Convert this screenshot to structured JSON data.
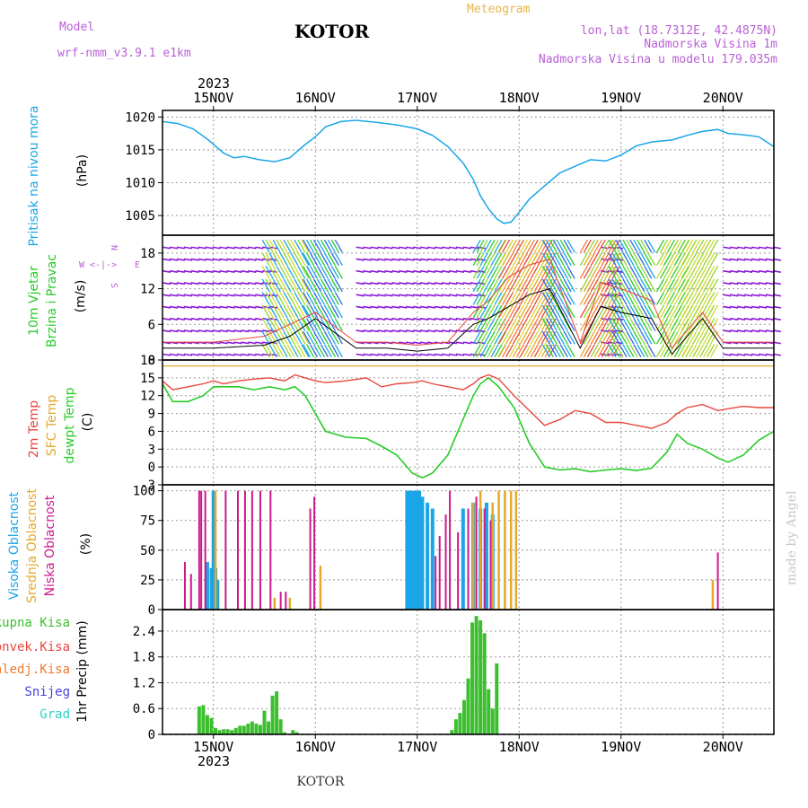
{
  "header": {
    "model_label": "Model",
    "model_name": "wrf-nmm_v3.9.1 e1km",
    "location": "KOTOR",
    "meteogram": "Meteogram",
    "lonlat": "lon,lat (18.7312E, 42.4875N)",
    "altitude": "Nadmorska Visina 1m",
    "model_altitude": "Nadmorska Visina u modelu 179.035m",
    "footer_location": "KOTOR",
    "watermark": "made by Angel",
    "year": "2023"
  },
  "colors": {
    "pressure": "#1aa6e6",
    "temp2m": "#e8473e",
    "sfc_temp": "#e6a82e",
    "dewpoint": "#27cc27",
    "high_cloud": "#1aa6e6",
    "mid_cloud": "#e6a82e",
    "low_cloud": "#cc1a8c",
    "total_precip": "#3cbf2e",
    "conv_precip": "#e8473e",
    "frozen_precip": "#f07a30",
    "snow": "#4444dd",
    "hail": "#2ed1c4",
    "wind_calm": "#8b1ad6",
    "wind_label_purple": "#b95fd6"
  },
  "x_axis": {
    "top_labels": [
      "15NOV",
      "16NOV",
      "17NOV",
      "18NOV",
      "19NOV",
      "20NOV"
    ],
    "bottom_labels": [
      "15NOV",
      "16NOV",
      "17NOV",
      "18NOV",
      "19NOV",
      "20NOV"
    ],
    "day_positions": [
      1,
      2,
      3,
      4,
      5,
      6
    ],
    "range": [
      0.5,
      6.5
    ]
  },
  "panels": {
    "pressure": {
      "label": "Pritisak na nivou mora",
      "unit": "(hPa)"
    },
    "wind": {
      "label1": "10m Vjetar",
      "label2": "Brzina i Pravac",
      "unit": "(m/s)",
      "compass_w": "W",
      "compass_e": "E",
      "compass_arrows": "<-|->",
      "compass_n": "N",
      "compass_s": "S"
    },
    "temp": {
      "label_2m": "2m Temp",
      "label_sfc": "SFC Temp",
      "label_dew": "dewpt Temp",
      "unit": "(C)"
    },
    "cloud": {
      "label_high": "Visoka Oblacnost",
      "label_mid": "Srednja Oblacnost",
      "label_low": "Niska Oblacnost",
      "unit": "(%)"
    },
    "precip": {
      "label": "1hr Precip (mm)",
      "legend": [
        "Ukupna Kisa",
        "Konvek.Kisa",
        "Zaledj.Kisa",
        "Snijeg",
        "Grad"
      ]
    }
  },
  "chart_data": [
    {
      "type": "line",
      "title": "Pritisak na nivou mora",
      "ylabel": "(hPa)",
      "ylim": [
        1002,
        1021
      ],
      "yticks": [
        1005,
        1010,
        1015,
        1020
      ],
      "x": [
        0.5,
        0.65,
        0.8,
        0.95,
        1.1,
        1.2,
        1.3,
        1.45,
        1.6,
        1.75,
        1.9,
        2.0,
        2.1,
        2.25,
        2.4,
        2.6,
        2.8,
        3.0,
        3.15,
        3.3,
        3.45,
        3.55,
        3.62,
        3.7,
        3.78,
        3.85,
        3.92,
        4.0,
        4.1,
        4.25,
        4.4,
        4.55,
        4.7,
        4.85,
        5.0,
        5.15,
        5.3,
        5.5,
        5.65,
        5.8,
        5.95,
        6.05,
        6.2,
        6.35,
        6.5
      ],
      "series": [
        {
          "name": "Pritisak na nivou mora",
          "values": [
            1019.3,
            1019.0,
            1018.2,
            1016.5,
            1014.5,
            1013.8,
            1014.0,
            1013.5,
            1013.2,
            1013.8,
            1015.8,
            1017.0,
            1018.5,
            1019.3,
            1019.5,
            1019.2,
            1018.8,
            1018.2,
            1017.2,
            1015.5,
            1013.0,
            1010.5,
            1008.0,
            1006.0,
            1004.5,
            1003.8,
            1004.0,
            1005.5,
            1007.5,
            1009.5,
            1011.5,
            1012.5,
            1013.5,
            1013.3,
            1014.2,
            1015.6,
            1016.2,
            1016.5,
            1017.2,
            1017.8,
            1018.1,
            1017.5,
            1017.3,
            1017.0,
            1015.5
          ]
        }
      ]
    },
    {
      "type": "line",
      "title": "10m Vjetar Brzina i Pravac",
      "ylabel": "(m/s)",
      "ylim": [
        0,
        21
      ],
      "yticks": [
        0,
        6,
        12,
        18
      ],
      "x": [
        0.5,
        1.0,
        1.5,
        1.75,
        2.0,
        2.4,
        2.7,
        3.0,
        3.3,
        3.55,
        3.7,
        3.9,
        4.1,
        4.3,
        4.6,
        4.8,
        5.0,
        5.3,
        5.5,
        5.8,
        6.0,
        6.3,
        6.5
      ],
      "series": [
        {
          "name": "speed",
          "values": [
            2,
            2,
            2.5,
            4,
            7,
            2,
            2,
            1.5,
            2,
            6,
            7,
            9,
            11,
            12,
            2,
            9,
            8,
            7,
            1,
            7,
            2,
            2,
            2
          ]
        },
        {
          "name": "gust",
          "values": [
            3,
            3,
            4,
            6,
            8,
            3,
            3,
            2.5,
            3,
            8,
            10,
            14,
            16,
            17,
            3,
            13,
            12,
            10,
            2,
            8,
            3,
            3,
            3
          ]
        }
      ]
    },
    {
      "type": "line",
      "title": "2m Temp / SFC Temp / dewpt Temp",
      "ylabel": "(C)",
      "ylim": [
        -3,
        18
      ],
      "yticks": [
        -3,
        0,
        3,
        6,
        9,
        12,
        15,
        18
      ],
      "x": [
        0.5,
        0.6,
        0.75,
        0.9,
        1.0,
        1.1,
        1.25,
        1.4,
        1.55,
        1.7,
        1.8,
        1.9,
        2.0,
        2.1,
        2.3,
        2.5,
        2.65,
        2.8,
        2.95,
        3.05,
        3.15,
        3.3,
        3.45,
        3.55,
        3.62,
        3.7,
        3.8,
        3.95,
        4.1,
        4.25,
        4.4,
        4.55,
        4.7,
        4.85,
        5.0,
        5.15,
        5.3,
        5.45,
        5.55,
        5.65,
        5.8,
        5.95,
        6.05,
        6.2,
        6.35,
        6.5
      ],
      "series": [
        {
          "name": "2m Temp",
          "values": [
            14.5,
            13.0,
            13.5,
            14.0,
            14.5,
            14.0,
            14.5,
            14.8,
            15.0,
            14.5,
            15.5,
            15.0,
            14.5,
            14.2,
            14.5,
            15.0,
            13.5,
            14.0,
            14.2,
            14.5,
            14.0,
            13.5,
            13.0,
            14.0,
            15.0,
            15.5,
            14.8,
            12.0,
            9.5,
            7.0,
            8.0,
            9.5,
            9.0,
            7.5,
            7.5,
            7.0,
            6.5,
            7.5,
            9.0,
            10.0,
            10.5,
            9.5,
            9.8,
            10.2,
            10.0,
            10.0
          ]
        },
        {
          "name": "SFC Temp",
          "values": [
            17,
            17,
            17,
            17,
            17,
            17,
            17,
            17,
            17,
            17,
            17,
            17,
            17,
            17,
            17,
            17,
            17,
            17,
            17,
            17,
            17,
            17,
            17,
            17,
            17,
            17,
            17,
            17,
            17,
            17,
            17,
            17,
            17,
            17,
            17,
            17,
            17,
            17,
            17,
            17,
            17,
            17,
            17,
            17,
            17,
            17
          ]
        },
        {
          "name": "dewpt Temp",
          "values": [
            14.0,
            11.0,
            11.0,
            12.0,
            13.5,
            13.5,
            13.5,
            13.0,
            13.5,
            13.0,
            13.5,
            12.0,
            9.0,
            6.0,
            5.0,
            4.8,
            3.5,
            2.0,
            -1.0,
            -1.8,
            -1.0,
            2.0,
            8.0,
            12.0,
            14.0,
            15.0,
            13.5,
            10.0,
            4.0,
            0.0,
            -0.5,
            -0.3,
            -0.8,
            -0.5,
            -0.3,
            -0.6,
            -0.2,
            2.5,
            5.5,
            4.0,
            3.0,
            1.5,
            0.8,
            2.0,
            4.5,
            6.0
          ]
        }
      ]
    },
    {
      "type": "bar",
      "title": "Visoka / Srednja / Niska Oblacnost",
      "ylabel": "(%)",
      "ylim": [
        0,
        105
      ],
      "yticks": [
        0,
        25,
        50,
        75,
        100
      ],
      "series": [
        {
          "name": "Visoka Oblacnost",
          "x": [
            0.94,
            0.98,
            1.0,
            1.02,
            1.04,
            2.9,
            2.93,
            2.96,
            2.99,
            3.02,
            3.05,
            3.1,
            3.15,
            3.45,
            3.55,
            3.62,
            3.68,
            3.74
          ],
          "values": [
            40,
            35,
            100,
            35,
            25,
            100,
            100,
            100,
            100,
            100,
            95,
            90,
            85,
            85,
            90,
            85,
            90,
            80
          ]
        },
        {
          "name": "Srednja Oblacnost",
          "x": [
            1.02,
            1.6,
            1.75,
            2.05,
            3.55,
            3.62,
            3.74,
            3.8,
            3.86,
            3.92,
            3.97,
            5.9
          ],
          "values": [
            100,
            10,
            10,
            37,
            90,
            100,
            90,
            100,
            100,
            100,
            100,
            25
          ]
        },
        {
          "name": "Niska Oblacnost",
          "x": [
            0.72,
            0.78,
            0.86,
            0.88,
            0.92,
            1.12,
            1.24,
            1.31,
            1.38,
            1.46,
            1.56,
            1.66,
            1.71,
            1.95,
            1.99,
            3.18,
            3.22,
            3.28,
            3.32,
            3.4,
            3.5,
            3.58,
            3.66,
            3.72,
            5.95
          ],
          "values": [
            40,
            30,
            100,
            100,
            100,
            100,
            100,
            100,
            100,
            100,
            100,
            15,
            15,
            85,
            95,
            45,
            62,
            80,
            100,
            65,
            85,
            95,
            85,
            75,
            48
          ]
        }
      ]
    },
    {
      "type": "bar",
      "title": "1hr Precip (mm)",
      "ylabel": "1hr Precip (mm)",
      "ylim": [
        0,
        2.9
      ],
      "yticks": [
        0,
        0.6,
        1.2,
        1.8,
        2.4
      ],
      "x": [
        0.86,
        0.9,
        0.94,
        0.98,
        1.02,
        1.06,
        1.1,
        1.14,
        1.18,
        1.22,
        1.26,
        1.3,
        1.34,
        1.38,
        1.42,
        1.46,
        1.5,
        1.54,
        1.58,
        1.62,
        1.66,
        1.7,
        1.78,
        1.82,
        3.34,
        3.38,
        3.42,
        3.46,
        3.5,
        3.54,
        3.58,
        3.62,
        3.66,
        3.7,
        3.74,
        3.78
      ],
      "series": [
        {
          "name": "Ukupna Kisa",
          "values": [
            0.65,
            0.68,
            0.45,
            0.38,
            0.15,
            0.1,
            0.12,
            0.12,
            0.1,
            0.15,
            0.2,
            0.2,
            0.25,
            0.3,
            0.25,
            0.22,
            0.55,
            0.3,
            0.9,
            1.0,
            0.35,
            0.05,
            0.1,
            0.05,
            0.1,
            0.35,
            0.5,
            0.8,
            1.3,
            2.6,
            2.75,
            2.65,
            2.35,
            1.05,
            0.6,
            1.65
          ]
        },
        {
          "name": "Konvek.Kisa",
          "values": [
            0,
            0,
            0,
            0,
            0,
            0,
            0,
            0,
            0,
            0,
            0,
            0,
            0,
            0,
            0,
            0,
            0,
            0,
            0,
            0,
            0,
            0,
            0,
            0,
            0,
            0,
            0,
            0,
            0,
            0,
            0,
            0,
            0,
            0,
            0,
            0
          ]
        }
      ]
    }
  ]
}
